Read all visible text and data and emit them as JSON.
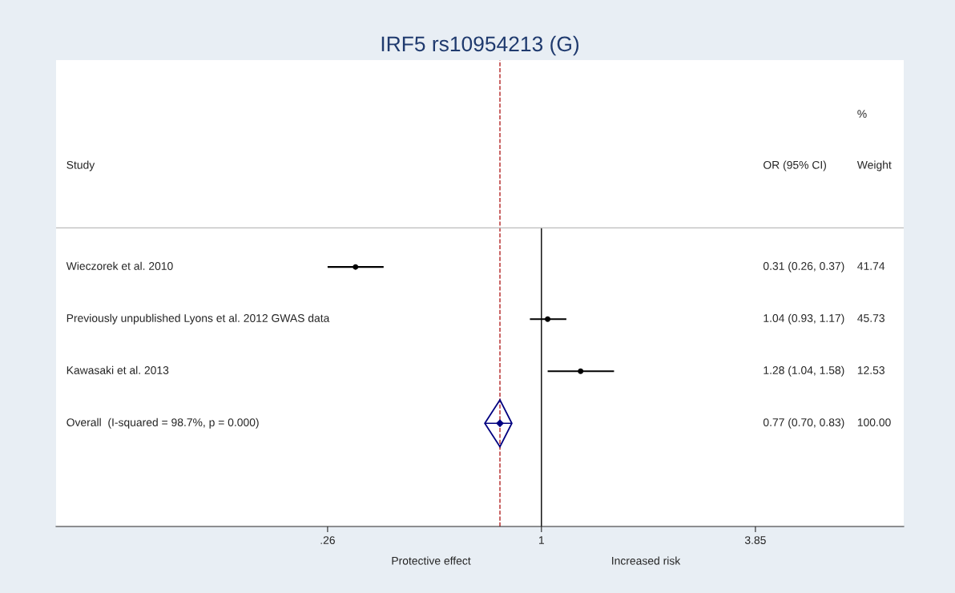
{
  "chart_data": {
    "type": "scatter",
    "title": "IRF5 rs10954213 (G)",
    "orientation": "horizontal",
    "log": "x",
    "categories": [
      "Wieczorek et al. 2010",
      "Previously unpublished Lyons et al. 2012 GWAS data",
      "Kawasaki et al. 2013",
      "Overall  (I-squared = 98.7%, p = 0.000)"
    ],
    "series": [
      {
        "color": "#000000",
        "marker": "circle",
        "values": [
          0.31,
          1.04,
          1.28,
          null
        ],
        "errors": [
          [
            0.26,
            0.37
          ],
          [
            0.93,
            1.17
          ],
          [
            1.04,
            1.58
          ],
          null
        ]
      },
      {
        "color": "#000080",
        "marker": "diamond",
        "values": [
          null,
          null,
          null,
          0.77
        ],
        "errors": [
          null,
          null,
          null,
          [
            0.7,
            0.83
          ]
        ]
      }
    ],
    "value_labels": [
      "0.31 (0.26, 0.37)",
      "1.04 (0.93, 1.17)",
      "1.28 (1.04, 1.58)",
      "0.77 (0.70, 0.83)"
    ],
    "xlim": [
      0.047,
      9.8
    ],
    "xticks": [
      {
        "value": 0.26,
        "label": ".26"
      },
      1,
      {
        "value": 3.85,
        "label": "3.85"
      }
    ],
    "ref_lines": [
      {
        "axis": "x",
        "value": 1,
        "color": "#000000",
        "line_style": "solid"
      },
      {
        "axis": "x",
        "value": 0.77,
        "color": "#b22222",
        "line_style": "dashed"
      }
    ],
    "grid": false,
    "legend": false,
    "annotations": [
      "Study",
      "OR (95% CI)",
      "%",
      "Weight",
      "41.74",
      "45.73",
      "12.53",
      "100.00",
      "Protective effect",
      "Increased risk"
    ]
  }
}
